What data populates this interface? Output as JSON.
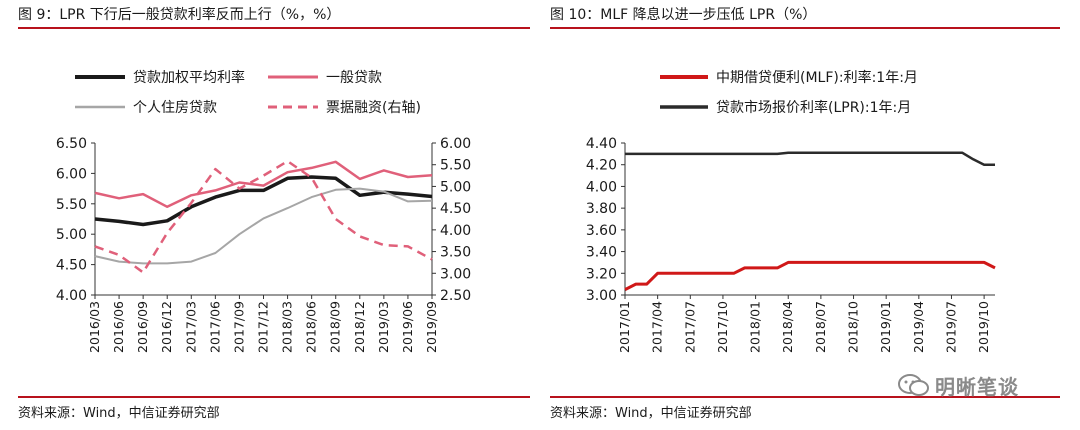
{
  "left": {
    "title": "图 9：LPR 下行后一般贷款利率反而上行（%，%）",
    "source": "资料来源：Wind，中信证券研究部"
  },
  "right": {
    "title": "图 10：MLF 降息以进一步压低 LPR（%）",
    "source": "资料来源：Wind，中信证券研究部"
  },
  "watermark": {
    "text": "明晰笔谈",
    "icon": "wechat-icon"
  },
  "chart_data": [
    {
      "type": "line",
      "x": [
        "2016/03",
        "2016/06",
        "2016/09",
        "2016/12",
        "2017/03",
        "2017/06",
        "2017/09",
        "2017/12",
        "2018/03",
        "2018/06",
        "2018/09",
        "2018/12",
        "2019/03",
        "2019/06",
        "2019/09"
      ],
      "x_ticks": [
        "2016/03",
        "2016/06",
        "2016/09",
        "2016/12",
        "2017/03",
        "2017/06",
        "2017/09",
        "2017/12",
        "2018/03",
        "2018/06",
        "2018/09",
        "2018/12",
        "2019/03",
        "2019/06",
        "2019/09"
      ],
      "ylim": [
        4.0,
        6.5
      ],
      "y_ticks": [
        "4.00",
        "4.50",
        "5.00",
        "5.50",
        "6.00",
        "6.50"
      ],
      "y2lim": [
        2.5,
        6.0
      ],
      "y2_ticks": [
        "2.50",
        "3.00",
        "3.50",
        "4.00",
        "4.50",
        "5.00",
        "5.50",
        "6.00"
      ],
      "legend_position": "top",
      "grid": false,
      "series": [
        {
          "name": "贷款加权平均利率",
          "axis": "left",
          "color": "#1a1a1a",
          "style": "solid",
          "width": 3.5,
          "values": [
            5.25,
            5.21,
            5.16,
            5.22,
            5.45,
            5.61,
            5.72,
            5.72,
            5.92,
            5.94,
            5.92,
            5.64,
            5.69,
            5.66,
            5.62
          ]
        },
        {
          "name": "一般贷款",
          "axis": "left",
          "color": "#e0607a",
          "style": "solid",
          "width": 2.5,
          "values": [
            5.68,
            5.59,
            5.66,
            5.45,
            5.64,
            5.72,
            5.85,
            5.8,
            6.02,
            6.09,
            6.19,
            5.91,
            6.05,
            5.94,
            5.97
          ]
        },
        {
          "name": "个人住房贷款",
          "axis": "left",
          "color": "#a6a6a6",
          "style": "solid",
          "width": 2,
          "values": [
            4.64,
            4.55,
            4.52,
            4.52,
            4.55,
            4.69,
            5.0,
            5.26,
            5.43,
            5.61,
            5.73,
            5.75,
            5.7,
            5.54,
            5.55
          ]
        },
        {
          "name": "票据融资(右轴)",
          "axis": "right",
          "color": "#e0607a",
          "style": "dashed",
          "width": 2.5,
          "values": [
            3.62,
            3.42,
            3.02,
            3.93,
            4.62,
            5.4,
            4.95,
            5.25,
            5.58,
            5.2,
            4.25,
            3.85,
            3.65,
            3.62,
            3.32
          ]
        }
      ]
    },
    {
      "type": "line",
      "x": [
        "2017/01",
        "2017/02",
        "2017/03",
        "2017/04",
        "2017/05",
        "2017/06",
        "2017/07",
        "2017/08",
        "2017/09",
        "2017/10",
        "2017/11",
        "2017/12",
        "2018/01",
        "2018/02",
        "2018/03",
        "2018/04",
        "2018/05",
        "2018/06",
        "2018/07",
        "2018/08",
        "2018/09",
        "2018/10",
        "2018/11",
        "2018/12",
        "2019/01",
        "2019/02",
        "2019/03",
        "2019/04",
        "2019/05",
        "2019/06",
        "2019/07",
        "2019/08",
        "2019/09",
        "2019/10",
        "2019/11"
      ],
      "x_ticks": [
        "2017/01",
        "2017/04",
        "2017/07",
        "2017/10",
        "2018/01",
        "2018/04",
        "2018/07",
        "2018/10",
        "2019/01",
        "2019/04",
        "2019/07",
        "2019/10"
      ],
      "ylim": [
        3.0,
        4.4
      ],
      "y_ticks": [
        "3.00",
        "3.20",
        "3.40",
        "3.60",
        "3.80",
        "4.00",
        "4.20",
        "4.40"
      ],
      "legend_position": "top-left",
      "grid": false,
      "series": [
        {
          "name": "中期借贷便利(MLF):利率:1年:月",
          "color": "#d01818",
          "style": "solid",
          "width": 3,
          "values": [
            3.05,
            3.1,
            3.1,
            3.2,
            3.2,
            3.2,
            3.2,
            3.2,
            3.2,
            3.2,
            3.2,
            3.25,
            3.25,
            3.25,
            3.25,
            3.3,
            3.3,
            3.3,
            3.3,
            3.3,
            3.3,
            3.3,
            3.3,
            3.3,
            3.3,
            3.3,
            3.3,
            3.3,
            3.3,
            3.3,
            3.3,
            3.3,
            3.3,
            3.3,
            3.25
          ]
        },
        {
          "name": "贷款市场报价利率(LPR):1年:月",
          "color": "#2b2b2b",
          "style": "solid",
          "width": 2.5,
          "values": [
            4.3,
            4.3,
            4.3,
            4.3,
            4.3,
            4.3,
            4.3,
            4.3,
            4.3,
            4.3,
            4.3,
            4.3,
            4.3,
            4.3,
            4.3,
            4.31,
            4.31,
            4.31,
            4.31,
            4.31,
            4.31,
            4.31,
            4.31,
            4.31,
            4.31,
            4.31,
            4.31,
            4.31,
            4.31,
            4.31,
            4.31,
            4.31,
            4.25,
            4.2,
            4.2
          ]
        }
      ]
    }
  ]
}
